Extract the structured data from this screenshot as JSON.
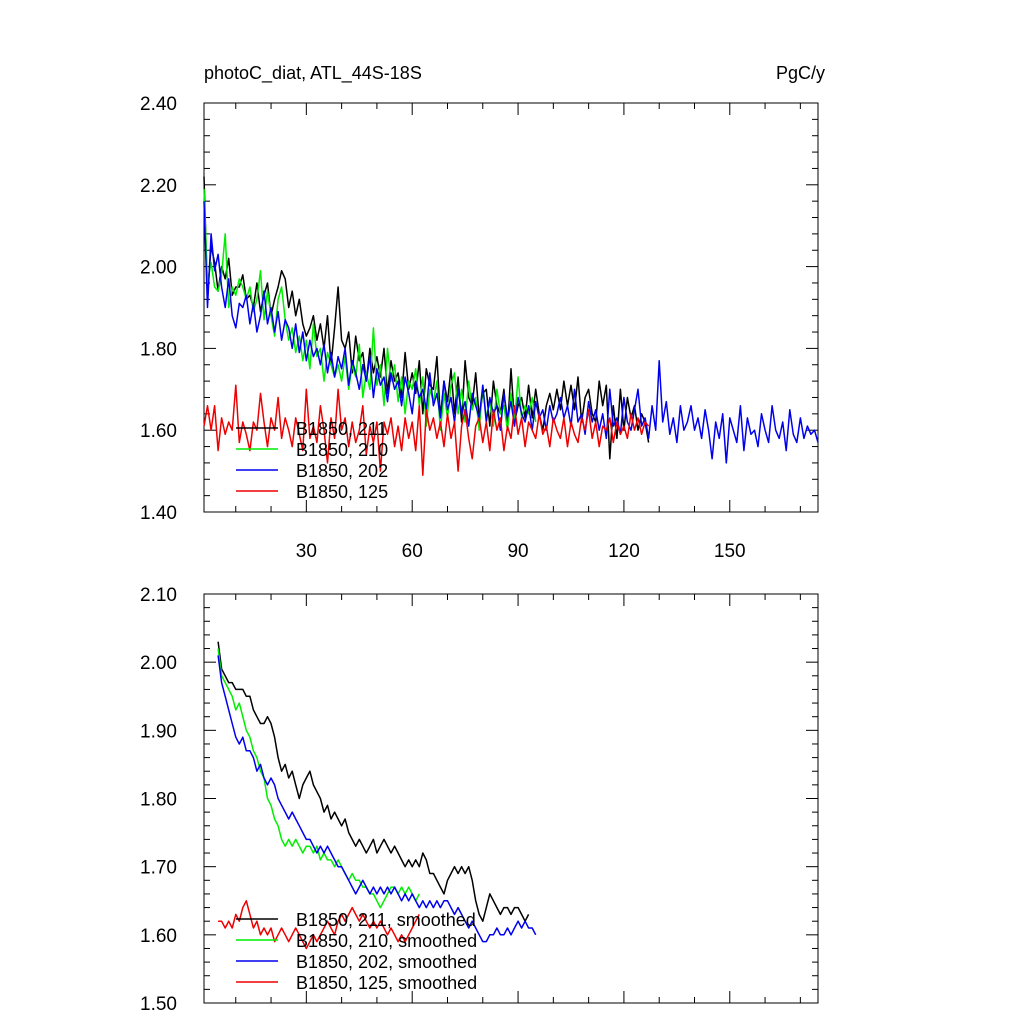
{
  "title_left": "photoC_diat, ATL_44S-18S",
  "title_right": "PgC/y",
  "chart_data": [
    {
      "type": "line",
      "xlim": [
        1,
        175
      ],
      "ylim": [
        1.4,
        2.4
      ],
      "xticks": [
        30,
        60,
        90,
        120,
        150
      ],
      "xtick_labels": [
        "30",
        "60",
        "90",
        "120",
        "150"
      ],
      "yticks": [
        1.4,
        1.6,
        1.8,
        2.0,
        2.2,
        2.4
      ],
      "ytick_labels": [
        "1.40",
        "1.60",
        "1.80",
        "2.00",
        "2.20",
        "2.40"
      ],
      "legend_position": "bottom-left",
      "series": [
        {
          "name": "B1850, 211",
          "color": "#000000",
          "x_start": 1,
          "values": [
            2.22,
            1.93,
            2.05,
            2.01,
            1.94,
            2.0,
            1.97,
            2.02,
            1.93,
            1.95,
            1.95,
            1.98,
            1.92,
            1.93,
            1.9,
            1.96,
            1.89,
            1.93,
            1.96,
            1.88,
            1.92,
            1.95,
            1.99,
            1.97,
            1.9,
            1.94,
            1.88,
            1.92,
            1.86,
            1.83,
            1.85,
            1.88,
            1.82,
            1.86,
            1.8,
            1.88,
            1.76,
            1.85,
            1.95,
            1.82,
            1.8,
            1.84,
            1.74,
            1.83,
            1.77,
            1.79,
            1.72,
            1.8,
            1.74,
            1.78,
            1.73,
            1.8,
            1.69,
            1.77,
            1.72,
            1.74,
            1.68,
            1.79,
            1.7,
            1.74,
            1.69,
            1.77,
            1.64,
            1.75,
            1.71,
            1.7,
            1.78,
            1.63,
            1.72,
            1.67,
            1.75,
            1.64,
            1.73,
            1.62,
            1.77,
            1.68,
            1.66,
            1.74,
            1.63,
            1.69,
            1.7,
            1.61,
            1.72,
            1.66,
            1.64,
            1.7,
            1.6,
            1.75,
            1.62,
            1.66,
            1.68,
            1.63,
            1.71,
            1.63,
            1.7,
            1.64,
            1.6,
            1.66,
            1.69,
            1.65,
            1.7,
            1.65,
            1.72,
            1.66,
            1.71,
            1.65,
            1.73,
            1.62,
            1.68,
            1.7,
            1.64,
            1.62,
            1.72,
            1.66,
            1.71,
            1.53,
            1.66,
            1.58,
            1.7,
            1.6,
            1.68,
            1.63,
            1.66,
            1.6,
            1.64,
            1.62,
            1.57
          ]
        },
        {
          "name": "B1850, 210",
          "color": "#00ee00",
          "x_start": 1,
          "values": [
            2.19,
            1.96,
            2.01,
            1.95,
            1.94,
            1.98,
            2.08,
            1.9,
            1.95,
            1.93,
            1.97,
            1.95,
            1.92,
            1.95,
            1.89,
            1.92,
            1.99,
            1.87,
            1.94,
            1.88,
            1.83,
            1.92,
            1.95,
            1.87,
            1.82,
            1.85,
            1.79,
            1.83,
            1.77,
            1.82,
            1.75,
            1.86,
            1.78,
            1.8,
            1.72,
            1.79,
            1.76,
            1.73,
            1.76,
            1.72,
            1.78,
            1.7,
            1.76,
            1.73,
            1.81,
            1.68,
            1.74,
            1.7,
            1.85,
            1.71,
            1.76,
            1.66,
            1.8,
            1.72,
            1.76,
            1.67,
            1.73,
            1.64,
            1.72,
            1.7,
            1.75,
            1.66,
            1.73,
            1.61,
            1.7,
            1.67,
            1.72,
            1.6,
            1.69,
            1.63,
            1.71,
            1.74,
            1.64,
            1.7,
            1.62,
            1.72,
            1.65,
            1.68,
            1.6,
            1.71,
            1.63,
            1.67,
            1.61,
            1.7,
            1.64,
            1.66,
            1.6,
            1.69,
            1.62,
            1.73,
            1.63,
            1.66,
            1.64,
            1.68,
            1.62
          ]
        },
        {
          "name": "B1850, 202",
          "color": "#0000ee",
          "x_start": 1,
          "values": [
            2.16,
            1.9,
            2.08,
            1.99,
            2.03,
            1.95,
            1.9,
            1.97,
            1.88,
            1.85,
            1.91,
            1.9,
            1.93,
            1.86,
            1.91,
            1.84,
            1.88,
            1.94,
            1.86,
            1.9,
            1.84,
            1.89,
            1.82,
            1.87,
            1.85,
            1.8,
            1.86,
            1.79,
            1.84,
            1.77,
            1.82,
            1.78,
            1.8,
            1.76,
            1.81,
            1.74,
            1.79,
            1.73,
            1.78,
            1.75,
            1.8,
            1.71,
            1.77,
            1.74,
            1.7,
            1.76,
            1.72,
            1.78,
            1.68,
            1.75,
            1.71,
            1.73,
            1.67,
            1.74,
            1.7,
            1.72,
            1.66,
            1.73,
            1.69,
            1.64,
            1.72,
            1.68,
            1.7,
            1.65,
            1.74,
            1.66,
            1.69,
            1.63,
            1.72,
            1.65,
            1.68,
            1.62,
            1.7,
            1.64,
            1.67,
            1.61,
            1.69,
            1.66,
            1.63,
            1.71,
            1.62,
            1.68,
            1.64,
            1.66,
            1.6,
            1.69,
            1.63,
            1.67,
            1.61,
            1.68,
            1.64,
            1.62,
            1.66,
            1.6,
            1.67,
            1.63,
            1.65,
            1.6,
            1.66,
            1.62,
            1.64,
            1.68,
            1.63,
            1.66,
            1.61,
            1.7,
            1.62,
            1.64,
            1.59,
            1.67,
            1.62,
            1.65,
            1.6,
            1.64,
            1.58,
            1.7,
            1.61,
            1.63,
            1.59,
            1.68,
            1.62,
            1.6,
            1.65,
            1.7,
            1.61,
            1.63,
            1.58,
            1.66,
            1.6,
            1.77,
            1.62,
            1.67,
            1.59,
            1.63,
            1.57,
            1.66,
            1.6,
            1.62,
            1.66,
            1.6,
            1.63,
            1.58,
            1.65,
            1.6,
            1.53,
            1.62,
            1.58,
            1.64,
            1.52,
            1.63,
            1.6,
            1.57,
            1.66,
            1.55,
            1.63,
            1.59,
            1.6,
            1.56,
            1.64,
            1.6,
            1.57,
            1.66,
            1.6,
            1.58,
            1.62,
            1.55,
            1.65,
            1.59,
            1.57,
            1.63,
            1.58,
            1.61,
            1.59,
            1.6,
            1.57
          ]
        },
        {
          "name": "B1850, 125",
          "color": "#ee0000",
          "x_start": 1,
          "values": [
            1.61,
            1.66,
            1.6,
            1.66,
            1.55,
            1.63,
            1.59,
            1.62,
            1.6,
            1.71,
            1.57,
            1.62,
            1.59,
            1.55,
            1.62,
            1.6,
            1.69,
            1.62,
            1.56,
            1.63,
            1.6,
            1.68,
            1.58,
            1.63,
            1.6,
            1.56,
            1.63,
            1.59,
            1.55,
            1.7,
            1.58,
            1.61,
            1.57,
            1.66,
            1.6,
            1.52,
            1.63,
            1.58,
            1.7,
            1.6,
            1.63,
            1.56,
            1.62,
            1.57,
            1.6,
            1.66,
            1.54,
            1.61,
            1.57,
            1.62,
            1.5,
            1.62,
            1.59,
            1.63,
            1.56,
            1.61,
            1.55,
            1.63,
            1.58,
            1.62,
            1.55,
            1.66,
            1.49,
            1.65,
            1.6,
            1.63,
            1.58,
            1.62,
            1.56,
            1.64,
            1.58,
            1.62,
            1.5,
            1.61,
            1.65,
            1.58,
            1.53,
            1.61,
            1.63,
            1.57,
            1.62,
            1.55,
            1.65,
            1.6,
            1.63,
            1.55,
            1.61,
            1.58,
            1.66,
            1.59,
            1.63,
            1.56,
            1.62,
            1.6,
            1.58,
            1.64,
            1.59,
            1.61,
            1.56,
            1.63,
            1.6,
            1.58,
            1.63,
            1.56,
            1.62,
            1.59,
            1.57,
            1.63,
            1.6,
            1.65,
            1.58,
            1.62,
            1.56,
            1.61,
            1.6,
            1.63,
            1.57,
            1.62,
            1.59,
            1.61,
            1.58,
            1.64,
            1.6,
            1.63,
            1.59,
            1.62,
            1.61
          ]
        }
      ]
    },
    {
      "type": "line",
      "xlim": [
        1,
        175
      ],
      "ylim": [
        1.5,
        2.1
      ],
      "xticks": [
        30,
        60,
        90,
        120,
        150
      ],
      "yticks": [
        1.5,
        1.6,
        1.7,
        1.8,
        1.9,
        2.0,
        2.1
      ],
      "ytick_labels": [
        "1.50",
        "1.60",
        "1.70",
        "1.80",
        "1.90",
        "2.00",
        "2.10"
      ],
      "legend_position": "bottom-left",
      "series": [
        {
          "name": "B1850, 211, smoothed",
          "color": "#000000",
          "x_start": 5,
          "values": [
            2.03,
            1.99,
            1.98,
            1.97,
            1.97,
            1.96,
            1.96,
            1.96,
            1.95,
            1.95,
            1.93,
            1.92,
            1.91,
            1.91,
            1.92,
            1.91,
            1.89,
            1.86,
            1.84,
            1.85,
            1.83,
            1.84,
            1.82,
            1.8,
            1.82,
            1.83,
            1.84,
            1.82,
            1.81,
            1.8,
            1.78,
            1.79,
            1.77,
            1.78,
            1.77,
            1.76,
            1.77,
            1.75,
            1.74,
            1.73,
            1.74,
            1.73,
            1.72,
            1.73,
            1.74,
            1.72,
            1.73,
            1.74,
            1.73,
            1.72,
            1.73,
            1.72,
            1.71,
            1.7,
            1.71,
            1.7,
            1.71,
            1.7,
            1.72,
            1.71,
            1.69,
            1.69,
            1.68,
            1.67,
            1.66,
            1.68,
            1.69,
            1.7,
            1.69,
            1.7,
            1.69,
            1.7,
            1.68,
            1.65,
            1.63,
            1.62,
            1.64,
            1.66,
            1.65,
            1.64,
            1.63,
            1.64,
            1.64,
            1.63,
            1.64,
            1.64,
            1.63,
            1.62,
            1.63
          ]
        },
        {
          "name": "B1850, 210, smoothed",
          "color": "#00ee00",
          "x_start": 5,
          "values": [
            2.02,
            1.98,
            1.97,
            1.96,
            1.95,
            1.93,
            1.94,
            1.92,
            1.9,
            1.89,
            1.87,
            1.86,
            1.84,
            1.83,
            1.8,
            1.79,
            1.77,
            1.76,
            1.74,
            1.73,
            1.74,
            1.73,
            1.74,
            1.73,
            1.72,
            1.73,
            1.73,
            1.72,
            1.73,
            1.71,
            1.72,
            1.71,
            1.71,
            1.7,
            1.71,
            1.7,
            1.69,
            1.68,
            1.69,
            1.68,
            1.68,
            1.67,
            1.67,
            1.66,
            1.66,
            1.65,
            1.64,
            1.65,
            1.66,
            1.67,
            1.67,
            1.66,
            1.67,
            1.66,
            1.67,
            1.66,
            1.65,
            1.66
          ]
        },
        {
          "name": "B1850, 202, smoothed",
          "color": "#0000ee",
          "x_start": 5,
          "values": [
            2.01,
            1.97,
            1.95,
            1.93,
            1.91,
            1.89,
            1.88,
            1.89,
            1.87,
            1.87,
            1.86,
            1.84,
            1.85,
            1.83,
            1.82,
            1.83,
            1.82,
            1.8,
            1.79,
            1.78,
            1.77,
            1.78,
            1.77,
            1.76,
            1.75,
            1.74,
            1.74,
            1.73,
            1.72,
            1.73,
            1.72,
            1.73,
            1.72,
            1.71,
            1.7,
            1.7,
            1.69,
            1.68,
            1.67,
            1.66,
            1.67,
            1.68,
            1.67,
            1.66,
            1.67,
            1.66,
            1.67,
            1.66,
            1.67,
            1.66,
            1.67,
            1.66,
            1.65,
            1.66,
            1.65,
            1.66,
            1.65,
            1.64,
            1.65,
            1.64,
            1.65,
            1.64,
            1.65,
            1.64,
            1.65,
            1.65,
            1.64,
            1.63,
            1.64,
            1.63,
            1.62,
            1.61,
            1.62,
            1.61,
            1.6,
            1.59,
            1.59,
            1.6,
            1.6,
            1.61,
            1.6,
            1.6,
            1.61,
            1.6,
            1.61,
            1.62,
            1.61,
            1.62,
            1.61,
            1.61,
            1.6
          ]
        },
        {
          "name": "B1850, 125, smoothed",
          "color": "#ee0000",
          "x_start": 5,
          "values": [
            1.62,
            1.62,
            1.61,
            1.62,
            1.61,
            1.63,
            1.62,
            1.64,
            1.65,
            1.63,
            1.61,
            1.62,
            1.6,
            1.61,
            1.6,
            1.61,
            1.59,
            1.6,
            1.61,
            1.6,
            1.59,
            1.6,
            1.61,
            1.6,
            1.59,
            1.58,
            1.59,
            1.6,
            1.59,
            1.6,
            1.61,
            1.62,
            1.61,
            1.6,
            1.62,
            1.63,
            1.62,
            1.63,
            1.64,
            1.63,
            1.62,
            1.63,
            1.62,
            1.61,
            1.62,
            1.61,
            1.62,
            1.61,
            1.6,
            1.61,
            1.6,
            1.59,
            1.6,
            1.59,
            1.6,
            1.61,
            1.62,
            1.63
          ]
        }
      ]
    }
  ]
}
